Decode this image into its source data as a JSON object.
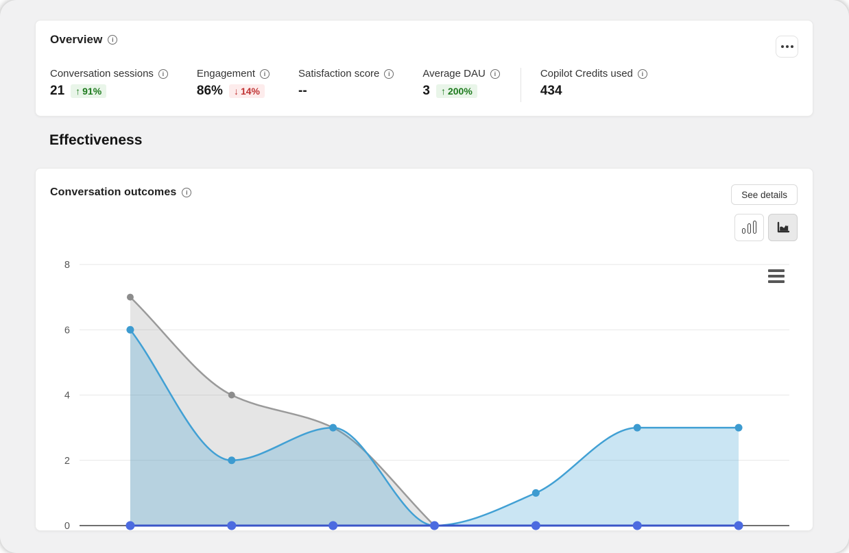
{
  "overview": {
    "title": "Overview",
    "metrics": [
      {
        "label": "Conversation sessions",
        "value": "21",
        "delta_arrow": "↑",
        "delta": "91%",
        "direction": "up"
      },
      {
        "label": "Engagement",
        "value": "86%",
        "delta_arrow": "↓",
        "delta": "14%",
        "direction": "down"
      },
      {
        "label": "Satisfaction score",
        "value": "--"
      },
      {
        "label": "Average DAU",
        "value": "3",
        "delta_arrow": "↑",
        "delta": "200%",
        "direction": "up"
      },
      {
        "label": "Copilot Credits used",
        "value": "434"
      }
    ]
  },
  "effectiveness": {
    "heading": "Effectiveness"
  },
  "outcomes": {
    "title": "Conversation outcomes",
    "see_details_label": "See details"
  },
  "chart_data": {
    "type": "area",
    "title": "Conversation outcomes",
    "categories": [
      "",
      "",
      "",
      "",
      "",
      "",
      ""
    ],
    "series": [
      {
        "name": "gray-series",
        "values": [
          7,
          4,
          3,
          0
        ],
        "line_color": "#9a9a9a",
        "marker_color": "#8c8c8c",
        "fill_color": "rgba(145,145,145,0.24)",
        "line_width": 2.5,
        "marker_radius": 5
      },
      {
        "name": "blue-series",
        "values": [
          6,
          2,
          3,
          0,
          1,
          3,
          3
        ],
        "line_color": "#41a0d4",
        "marker_color": "#3d9bd0",
        "fill_color": "rgba(65,160,212,0.28)",
        "line_width": 2.5,
        "marker_radius": 5.5
      },
      {
        "name": "zero-line-series",
        "values": [
          0,
          0,
          0,
          0,
          0,
          0,
          0
        ],
        "line_color": "#3a55c8",
        "marker_color": "#4c6be0",
        "fill_color": "none",
        "line_width": 3,
        "marker_radius": 6.5
      }
    ],
    "xlabel": "",
    "ylabel": "",
    "ylim": [
      0,
      8
    ],
    "yticks": [
      0,
      2,
      4,
      6,
      8
    ],
    "grid": "horizontal",
    "legend": "none",
    "axis_color": "#6f6f6f",
    "grid_color": "#e7e7e7",
    "tick_label_color": "#565656"
  }
}
